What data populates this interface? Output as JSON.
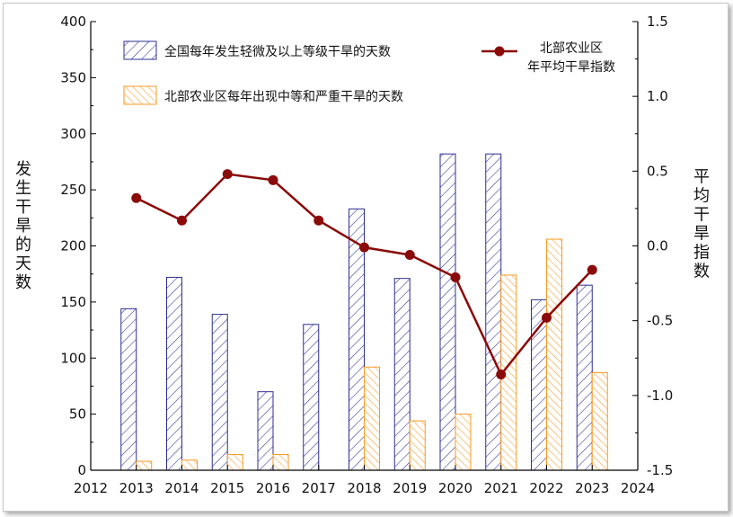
{
  "chart_data": {
    "type": "bar",
    "title": "",
    "x": [
      2013,
      2014,
      2015,
      2016,
      2017,
      2018,
      2019,
      2020,
      2021,
      2022,
      2023
    ],
    "xticks": [
      2012,
      2013,
      2014,
      2015,
      2016,
      2017,
      2018,
      2019,
      2020,
      2021,
      2022,
      2023,
      2024
    ],
    "xlim": [
      2012,
      2024
    ],
    "ylabel_left": "发生干旱的天数",
    "ylim_left": [
      0,
      400
    ],
    "yticks_left": [
      "0",
      "50",
      "100",
      "150",
      "200",
      "250",
      "300",
      "350",
      "400"
    ],
    "ylabel_right": "平均干旱指数",
    "ylim_right": [
      -1.5,
      1.5
    ],
    "yticks_right": [
      "1.5",
      "1.0",
      "0.5",
      "0.0",
      "-0.5",
      "-1.0",
      "-1.5"
    ],
    "grid": false,
    "series": [
      {
        "name": "全国每年发生轻微及以上等级干旱的天数",
        "type": "bar",
        "axis": "left",
        "color": "#2b2f8f",
        "pattern": "hatch",
        "values": [
          144,
          172,
          139,
          70,
          130,
          233,
          171,
          282,
          282,
          152,
          165
        ]
      },
      {
        "name": "北部农业区每年出现中等和严重干旱的天数",
        "type": "bar",
        "axis": "left",
        "color": "#f59a23",
        "pattern": "hatch",
        "values": [
          8,
          9,
          14,
          14,
          0,
          92,
          44,
          50,
          174,
          206,
          87
        ]
      },
      {
        "name": "北部农业区年平均干旱指数",
        "name_lines": [
          "北部农业区",
          "年平均干旱指数"
        ],
        "type": "line",
        "axis": "right",
        "color": "#8b0a0a",
        "values": [
          0.32,
          0.17,
          0.48,
          0.44,
          0.17,
          -0.01,
          -0.06,
          -0.21,
          -0.86,
          -0.48,
          -0.16
        ]
      }
    ],
    "legend_placement": "top"
  }
}
